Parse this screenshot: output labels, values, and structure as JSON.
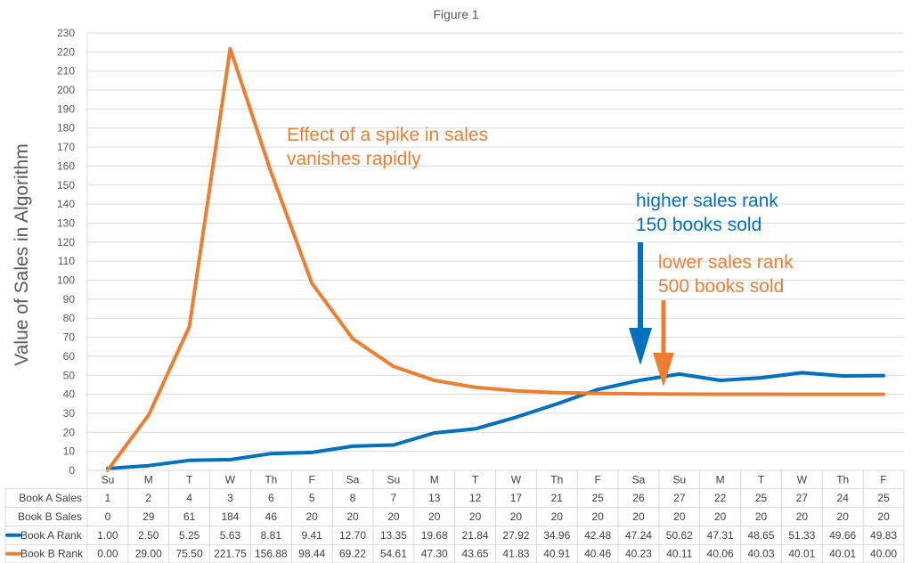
{
  "chart_data": {
    "type": "line",
    "title": "Figure 1",
    "ylabel": "Value of Sales in Algorithm",
    "ylim": [
      0,
      230
    ],
    "yticks": [
      0,
      10,
      20,
      30,
      40,
      50,
      60,
      70,
      80,
      90,
      100,
      110,
      120,
      130,
      140,
      150,
      160,
      170,
      180,
      190,
      200,
      210,
      220,
      230
    ],
    "grid": true,
    "categories": [
      "Su",
      "M",
      "T",
      "W",
      "Th",
      "F",
      "Sa",
      "Su",
      "M",
      "T",
      "W",
      "Th",
      "F",
      "Sa",
      "Su",
      "M",
      "T",
      "W",
      "Th",
      "F"
    ],
    "series": [
      {
        "name": "Book A Rank",
        "color": "#0070C0",
        "values": [
          1.0,
          2.5,
          5.25,
          5.63,
          8.81,
          9.41,
          12.7,
          13.35,
          19.68,
          21.84,
          27.92,
          34.96,
          42.48,
          47.24,
          50.62,
          47.31,
          48.65,
          51.33,
          49.66,
          49.83
        ],
        "labels": [
          "1.00",
          "2.50",
          "5.25",
          "5.63",
          "8.81",
          "9.41",
          "12.70",
          "13.35",
          "19.68",
          "21.84",
          "27.92",
          "34.96",
          "42.48",
          "47.24",
          "50.62",
          "47.31",
          "48.65",
          "51.33",
          "49.66",
          "49.83"
        ]
      },
      {
        "name": "Book B Rank",
        "color": "#ED7D31",
        "values": [
          0.0,
          29.0,
          75.5,
          221.75,
          156.88,
          98.44,
          69.22,
          54.61,
          47.3,
          43.65,
          41.83,
          40.91,
          40.46,
          40.23,
          40.11,
          40.06,
          40.03,
          40.01,
          40.01,
          40.0
        ],
        "labels": [
          "0.00",
          "29.00",
          "75.50",
          "221.75",
          "156.88",
          "98.44",
          "69.22",
          "54.61",
          "47.30",
          "43.65",
          "41.83",
          "40.91",
          "40.46",
          "40.23",
          "40.11",
          "40.06",
          "40.03",
          "40.01",
          "40.01",
          "40.00"
        ]
      }
    ],
    "table_rows": [
      {
        "label": "Book A Sales",
        "values": [
          "1",
          "2",
          "4",
          "3",
          "6",
          "5",
          "8",
          "7",
          "13",
          "12",
          "17",
          "21",
          "25",
          "26",
          "27",
          "22",
          "25",
          "27",
          "24",
          "25"
        ]
      },
      {
        "label": "Book B Sales",
        "values": [
          "0",
          "29",
          "61",
          "184",
          "46",
          "20",
          "20",
          "20",
          "20",
          "20",
          "20",
          "20",
          "20",
          "20",
          "20",
          "20",
          "20",
          "20",
          "20",
          "20"
        ]
      }
    ],
    "annotations": [
      {
        "lines": [
          "Effect of a spike in sales",
          "vanishes rapidly"
        ],
        "color": "#ED7D31"
      },
      {
        "lines": [
          "higher sales rank",
          "150 books sold"
        ],
        "color": "#0070C0",
        "arrow_x_index": 13.5,
        "arrow_to_y": 47
      },
      {
        "lines": [
          "lower sales rank",
          "500 books sold"
        ],
        "color": "#ED7D31",
        "arrow_x_index": 14.0,
        "arrow_to_y": 40
      }
    ]
  }
}
